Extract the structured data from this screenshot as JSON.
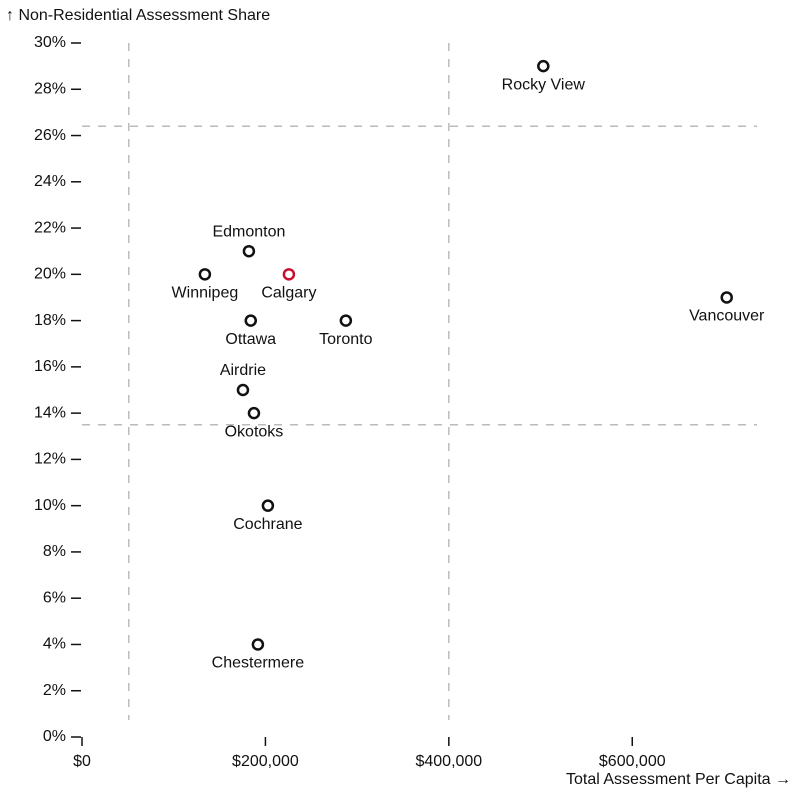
{
  "chart_data": {
    "type": "scatter",
    "y_label": "↑ Non-Residential Assessment Share",
    "x_label": "Total Assessment Per Capita →",
    "point_labels": [
      "Rocky View",
      "Vancouver",
      "Edmonton",
      "Winnipeg",
      "Calgary",
      "Ottawa",
      "Toronto",
      "Airdrie",
      "Okotoks",
      "Cochrane",
      "Chestermere"
    ],
    "x": [
      503000,
      703000,
      182000,
      134000,
      225600,
      184000,
      287700,
      175500,
      187500,
      202700,
      191800
    ],
    "values": [
      29,
      19,
      21,
      20,
      20,
      18,
      18,
      15,
      14,
      10,
      4
    ],
    "colors": [
      "#111111",
      "#111111",
      "#111111",
      "#111111",
      "#c8102e",
      "#111111",
      "#111111",
      "#111111",
      "#111111",
      "#111111",
      "#111111"
    ],
    "label_positions": [
      "below",
      "below",
      "above",
      "below",
      "below",
      "below",
      "below",
      "above",
      "below",
      "below",
      "below"
    ],
    "reference_lines": {
      "x": [
        51000,
        400000
      ],
      "y": [
        26.4,
        13.5
      ]
    },
    "xlim": [
      0,
      760000
    ],
    "ylim": [
      0,
      30
    ],
    "xticks": [
      {
        "value": 0,
        "label": "$0"
      },
      {
        "value": 200000,
        "label": "$200,000"
      },
      {
        "value": 400000,
        "label": "$400,000"
      },
      {
        "value": 600000,
        "label": "$600,000"
      }
    ],
    "yticks": [
      {
        "value": 0,
        "label": "0%"
      },
      {
        "value": 2,
        "label": "2%"
      },
      {
        "value": 4,
        "label": "4%"
      },
      {
        "value": 6,
        "label": "6%"
      },
      {
        "value": 8,
        "label": "8%"
      },
      {
        "value": 10,
        "label": "10%"
      },
      {
        "value": 12,
        "label": "12%"
      },
      {
        "value": 14,
        "label": "14%"
      },
      {
        "value": 16,
        "label": "16%"
      },
      {
        "value": 18,
        "label": "18%"
      },
      {
        "value": 20,
        "label": "20%"
      },
      {
        "value": 22,
        "label": "22%"
      },
      {
        "value": 24,
        "label": "24%"
      },
      {
        "value": 26,
        "label": "26%"
      },
      {
        "value": 28,
        "label": "28%"
      },
      {
        "value": 30,
        "label": "30%"
      }
    ]
  }
}
